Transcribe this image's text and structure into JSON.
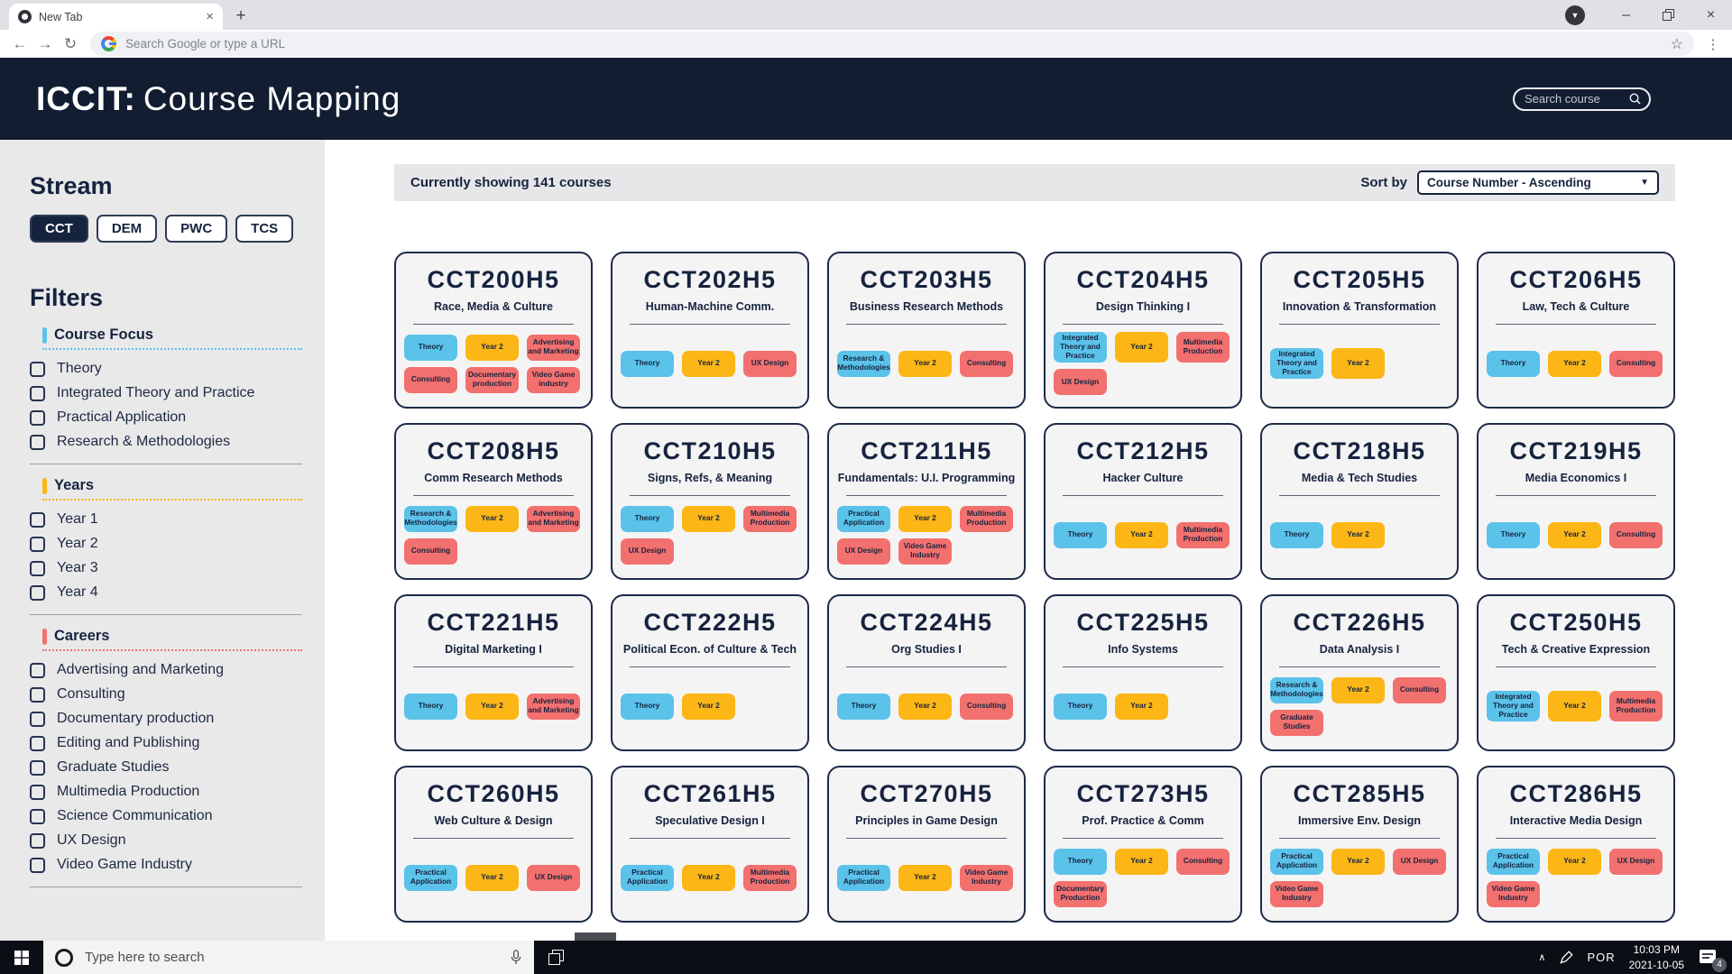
{
  "browser": {
    "tab_title": "New Tab",
    "url_placeholder": "Search Google or type a URL"
  },
  "header": {
    "title_primary": "ICCIT:",
    "title_secondary": "Course Mapping",
    "search_placeholder": "Search course"
  },
  "sidebar": {
    "stream_title": "Stream",
    "streams": [
      {
        "label": "CCT",
        "active": true
      },
      {
        "label": "DEM",
        "active": false
      },
      {
        "label": "PWC",
        "active": false
      },
      {
        "label": "TCS",
        "active": false
      }
    ],
    "filters_title": "Filters",
    "groups": [
      {
        "title": "Course Focus",
        "accent": "#5bc2ea",
        "items": [
          "Theory",
          "Integrated Theory and Practice",
          "Practical Application",
          "Research & Methodologies"
        ]
      },
      {
        "title": "Years",
        "accent": "#fcb615",
        "items": [
          "Year 1",
          "Year 2",
          "Year 3",
          "Year 4"
        ]
      },
      {
        "title": "Careers",
        "accent": "#f2706e",
        "items": [
          "Advertising and Marketing",
          "Consulting",
          "Documentary production",
          "Editing and Publishing",
          "Graduate Studies",
          "Multimedia Production",
          "Science Communication",
          "UX Design",
          "Video Game Industry"
        ]
      }
    ]
  },
  "main": {
    "showing_text": "Currently showing 141 courses",
    "sort_label": "Sort by",
    "sort_value": "Course Number - Ascending",
    "courses": [
      {
        "code": "CCT200H5",
        "name": "Race, Media & Culture",
        "tags": [
          {
            "label": "Theory",
            "type": "focus"
          },
          {
            "label": "Year 2",
            "type": "year"
          },
          {
            "label": "Advertising and Marketing",
            "type": "career"
          },
          {
            "label": "Consulting",
            "type": "career"
          },
          {
            "label": "Documentary production",
            "type": "career"
          },
          {
            "label": "Video Game industry",
            "type": "career"
          }
        ]
      },
      {
        "code": "CCT202H5",
        "name": "Human-Machine Comm.",
        "tags": [
          {
            "label": "Theory",
            "type": "focus"
          },
          {
            "label": "Year 2",
            "type": "year"
          },
          {
            "label": "UX Design",
            "type": "career"
          }
        ]
      },
      {
        "code": "CCT203H5",
        "name": "Business Research Methods",
        "tags": [
          {
            "label": "Research & Methodologies",
            "type": "focus"
          },
          {
            "label": "Year 2",
            "type": "year"
          },
          {
            "label": "Consulting",
            "type": "career"
          }
        ]
      },
      {
        "code": "CCT204H5",
        "name": "Design Thinking I",
        "tags": [
          {
            "label": "Integrated Theory and Practice",
            "type": "focus"
          },
          {
            "label": "Year 2",
            "type": "year"
          },
          {
            "label": "Multimedia Production",
            "type": "career"
          },
          {
            "label": "UX Design",
            "type": "career"
          }
        ]
      },
      {
        "code": "CCT205H5",
        "name": "Innovation & Transformation",
        "tags": [
          {
            "label": "Integrated Theory and Practice",
            "type": "focus"
          },
          {
            "label": "Year 2",
            "type": "year"
          }
        ]
      },
      {
        "code": "CCT206H5",
        "name": "Law, Tech & Culture",
        "tags": [
          {
            "label": "Theory",
            "type": "focus"
          },
          {
            "label": "Year 2",
            "type": "year"
          },
          {
            "label": "Consulting",
            "type": "career"
          }
        ]
      },
      {
        "code": "CCT208H5",
        "name": "Comm Research Methods",
        "tags": [
          {
            "label": "Research & Methodologies",
            "type": "focus"
          },
          {
            "label": "Year 2",
            "type": "year"
          },
          {
            "label": "Advertising and Marketing",
            "type": "career"
          },
          {
            "label": "Consulting",
            "type": "career"
          }
        ]
      },
      {
        "code": "CCT210H5",
        "name": "Signs, Refs, & Meaning",
        "tags": [
          {
            "label": "Theory",
            "type": "focus"
          },
          {
            "label": "Year 2",
            "type": "year"
          },
          {
            "label": "Multimedia Production",
            "type": "career"
          },
          {
            "label": "UX Design",
            "type": "career"
          }
        ]
      },
      {
        "code": "CCT211H5",
        "name": "Fundamentals: U.I. Programming",
        "tags": [
          {
            "label": "Practical Application",
            "type": "focus"
          },
          {
            "label": "Year 2",
            "type": "year"
          },
          {
            "label": "Multimedia Production",
            "type": "career"
          },
          {
            "label": "UX Design",
            "type": "career"
          },
          {
            "label": "Video Game Industry",
            "type": "career"
          }
        ]
      },
      {
        "code": "CCT212H5",
        "name": "Hacker Culture",
        "tags": [
          {
            "label": "Theory",
            "type": "focus"
          },
          {
            "label": "Year 2",
            "type": "year"
          },
          {
            "label": "Multimedia Production",
            "type": "career"
          }
        ]
      },
      {
        "code": "CCT218H5",
        "name": "Media & Tech Studies",
        "tags": [
          {
            "label": "Theory",
            "type": "focus"
          },
          {
            "label": "Year 2",
            "type": "year"
          }
        ]
      },
      {
        "code": "CCT219H5",
        "name": "Media Economics I",
        "tags": [
          {
            "label": "Theory",
            "type": "focus"
          },
          {
            "label": "Year 2",
            "type": "year"
          },
          {
            "label": "Consulting",
            "type": "career"
          }
        ]
      },
      {
        "code": "CCT221H5",
        "name": "Digital Marketing I",
        "tags": [
          {
            "label": "Theory",
            "type": "focus"
          },
          {
            "label": "Year 2",
            "type": "year"
          },
          {
            "label": "Advertising and Marketing",
            "type": "career"
          }
        ]
      },
      {
        "code": "CCT222H5",
        "name": "Political Econ. of Culture & Tech",
        "tags": [
          {
            "label": "Theory",
            "type": "focus"
          },
          {
            "label": "Year 2",
            "type": "year"
          }
        ]
      },
      {
        "code": "CCT224H5",
        "name": "Org Studies I",
        "tags": [
          {
            "label": "Theory",
            "type": "focus"
          },
          {
            "label": "Year 2",
            "type": "year"
          },
          {
            "label": "Consulting",
            "type": "career"
          }
        ]
      },
      {
        "code": "CCT225H5",
        "name": "Info Systems",
        "tags": [
          {
            "label": "Theory",
            "type": "focus"
          },
          {
            "label": "Year 2",
            "type": "year"
          }
        ]
      },
      {
        "code": "CCT226H5",
        "name": "Data Analysis I",
        "tags": [
          {
            "label": "Research & Methodologies",
            "type": "focus"
          },
          {
            "label": "Year 2",
            "type": "year"
          },
          {
            "label": "Consulting",
            "type": "career"
          },
          {
            "label": "Graduate Studies",
            "type": "career"
          }
        ]
      },
      {
        "code": "CCT250H5",
        "name": "Tech & Creative Expression",
        "tags": [
          {
            "label": "Integrated Theory and Practice",
            "type": "focus"
          },
          {
            "label": "Year 2",
            "type": "year"
          },
          {
            "label": "Multimedia Production",
            "type": "career"
          }
        ]
      },
      {
        "code": "CCT260H5",
        "name": "Web Culture & Design",
        "tags": [
          {
            "label": "Practical Application",
            "type": "focus"
          },
          {
            "label": "Year 2",
            "type": "year"
          },
          {
            "label": "UX Design",
            "type": "career"
          }
        ]
      },
      {
        "code": "CCT261H5",
        "name": "Speculative Design I",
        "tags": [
          {
            "label": "Practical Application",
            "type": "focus"
          },
          {
            "label": "Year 2",
            "type": "year"
          },
          {
            "label": "Multimedia Production",
            "type": "career"
          }
        ]
      },
      {
        "code": "CCT270H5",
        "name": "Principles in Game Design",
        "tags": [
          {
            "label": "Practical Application",
            "type": "focus"
          },
          {
            "label": "Year 2",
            "type": "year"
          },
          {
            "label": "Video Game Industry",
            "type": "career"
          }
        ]
      },
      {
        "code": "CCT273H5",
        "name": "Prof. Practice & Comm",
        "tags": [
          {
            "label": "Theory",
            "type": "focus"
          },
          {
            "label": "Year 2",
            "type": "year"
          },
          {
            "label": "Consulting",
            "type": "career"
          },
          {
            "label": "Documentary Production",
            "type": "career"
          }
        ]
      },
      {
        "code": "CCT285H5",
        "name": "Immersive Env. Design",
        "tags": [
          {
            "label": "Practical Application",
            "type": "focus"
          },
          {
            "label": "Year 2",
            "type": "year"
          },
          {
            "label": "UX Design",
            "type": "career"
          },
          {
            "label": "Video Game Industry",
            "type": "career"
          }
        ]
      },
      {
        "code": "CCT286H5",
        "name": "Interactive Media Design",
        "tags": [
          {
            "label": "Practical Application",
            "type": "focus"
          },
          {
            "label": "Year 2",
            "type": "year"
          },
          {
            "label": "UX Design",
            "type": "career"
          },
          {
            "label": "Video Game Industry",
            "type": "career"
          }
        ]
      }
    ]
  },
  "taskbar": {
    "search_placeholder": "Type here to search",
    "language": "POR",
    "time": "10:03 PM",
    "date": "2021-10-05",
    "notification_count": "4"
  },
  "icons": {
    "tab_close": "×",
    "new_tab": "+",
    "window_minimize": "–",
    "window_close": "×",
    "update_arrow": "▼",
    "back": "←",
    "forward": "→",
    "reload": "↻",
    "bookmark_star": "☆",
    "menu_kebab": "⋮",
    "select_arrow": "▼",
    "tray_chevron": "∧"
  },
  "colors": {
    "header_bg": "#121d32",
    "navy_text": "#16233e",
    "accent_blue": "#5bc2ea",
    "accent_yellow": "#fcb615",
    "accent_red": "#f2706e"
  }
}
